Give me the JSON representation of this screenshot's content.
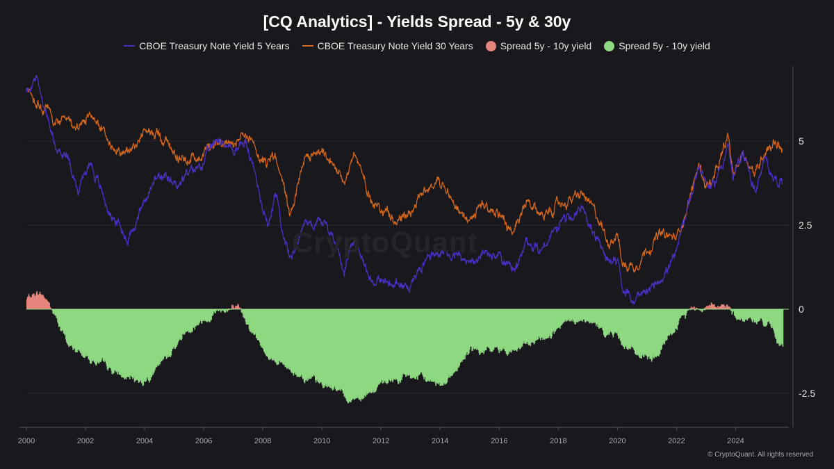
{
  "chart_data": {
    "type": "line",
    "title": "[CQ Analytics] - Yields Spread - 5y & 30y",
    "watermark": "CryptoQuant",
    "credit": "© CryptoQuant. All rights reserved",
    "x_ticks": [
      "2000",
      "2002",
      "2004",
      "2006",
      "2008",
      "2010",
      "2012",
      "2014",
      "2016",
      "2018",
      "2020",
      "2022",
      "2024"
    ],
    "y_ticks": [
      "5",
      "2.5",
      "0",
      "-2.5"
    ],
    "ylim": [
      -3.6,
      7.3
    ],
    "grid": true,
    "legend_position": "top-center",
    "colors": {
      "background": "#19181d",
      "yield_5y": "#4b2fc4",
      "yield_30y": "#d3661a",
      "spread_positive": "#e5857c",
      "spread_negative": "#8fd882"
    },
    "series": [
      {
        "name": "CBOE Treasury Note Yield 5 Years",
        "x": [
          "2000-01",
          "2000-05",
          "2001-01",
          "2001-06",
          "2001-10",
          "2002-03",
          "2002-10",
          "2003-06",
          "2004-01",
          "2004-06",
          "2005-01",
          "2005-07",
          "2006-01",
          "2006-07",
          "2007-01",
          "2007-06",
          "2007-12",
          "2008-03",
          "2008-06",
          "2008-12",
          "2009-06",
          "2010-01",
          "2010-06",
          "2010-10",
          "2011-02",
          "2011-09",
          "2012-06",
          "2012-12",
          "2013-06",
          "2013-12",
          "2014-06",
          "2015-01",
          "2015-06",
          "2016-01",
          "2016-07",
          "2016-12",
          "2017-06",
          "2018-01",
          "2018-11",
          "2019-06",
          "2019-09",
          "2020-01",
          "2020-03",
          "2020-08",
          "2021-01",
          "2021-06",
          "2022-01",
          "2022-06",
          "2022-10",
          "2023-01",
          "2023-04",
          "2023-10",
          "2023-12",
          "2024-04",
          "2024-09",
          "2025-01",
          "2025-05",
          "2025-08"
        ],
        "values": [
          6.5,
          6.8,
          4.8,
          4.5,
          3.6,
          4.4,
          3.0,
          2.1,
          3.2,
          3.9,
          3.7,
          4.0,
          4.4,
          5.1,
          4.7,
          5.0,
          3.4,
          2.5,
          3.4,
          1.5,
          2.6,
          2.6,
          2.1,
          1.2,
          2.2,
          0.9,
          0.7,
          0.7,
          1.4,
          1.7,
          1.7,
          1.3,
          1.6,
          1.6,
          1.0,
          1.9,
          1.8,
          2.5,
          3.0,
          1.8,
          1.4,
          1.6,
          0.5,
          0.3,
          0.4,
          0.9,
          1.6,
          3.2,
          4.3,
          3.8,
          3.6,
          4.9,
          3.8,
          4.7,
          3.5,
          4.4,
          3.9,
          3.8
        ]
      },
      {
        "name": "CBOE Treasury Note Yield 30 Years",
        "x": [
          "2000-01",
          "2000-05",
          "2001-01",
          "2001-06",
          "2001-10",
          "2002-03",
          "2002-10",
          "2003-06",
          "2004-01",
          "2004-06",
          "2005-01",
          "2005-07",
          "2006-01",
          "2006-07",
          "2007-01",
          "2007-06",
          "2007-12",
          "2008-03",
          "2008-06",
          "2008-12",
          "2009-06",
          "2010-01",
          "2010-06",
          "2010-10",
          "2011-02",
          "2011-09",
          "2012-06",
          "2012-12",
          "2013-06",
          "2013-12",
          "2014-06",
          "2015-01",
          "2015-06",
          "2016-01",
          "2016-07",
          "2016-12",
          "2017-06",
          "2018-01",
          "2018-11",
          "2019-06",
          "2019-09",
          "2020-01",
          "2020-03",
          "2020-08",
          "2021-01",
          "2021-06",
          "2022-01",
          "2022-06",
          "2022-10",
          "2023-01",
          "2023-04",
          "2023-10",
          "2023-12",
          "2024-04",
          "2024-09",
          "2025-01",
          "2025-05",
          "2025-08"
        ],
        "values": [
          6.5,
          6.2,
          5.6,
          5.7,
          5.3,
          5.8,
          5.0,
          4.6,
          5.2,
          5.3,
          4.7,
          4.4,
          4.7,
          5.1,
          4.9,
          5.1,
          4.5,
          4.4,
          4.6,
          2.8,
          4.4,
          4.6,
          4.2,
          3.9,
          4.6,
          3.3,
          2.7,
          2.9,
          3.4,
          3.9,
          3.4,
          2.5,
          3.1,
          2.9,
          2.2,
          3.1,
          2.8,
          3.1,
          3.4,
          2.6,
          2.0,
          2.3,
          1.3,
          1.3,
          1.8,
          2.2,
          2.1,
          3.2,
          4.3,
          3.7,
          3.8,
          5.1,
          4.0,
          4.7,
          4.0,
          4.8,
          5.0,
          4.8
        ]
      },
      {
        "name": "Spread 5y - 10y yield",
        "x": [
          "2000-01",
          "2000-06",
          "2000-09",
          "2001-01",
          "2001-06",
          "2002-01",
          "2002-06",
          "2003-06",
          "2004-01",
          "2004-06",
          "2005-01",
          "2005-06",
          "2006-01",
          "2006-07",
          "2007-01",
          "2007-06",
          "2008-01",
          "2008-06",
          "2008-12",
          "2009-06",
          "2010-01",
          "2010-06",
          "2010-12",
          "2011-06",
          "2012-01",
          "2012-06",
          "2013-01",
          "2013-06",
          "2014-01",
          "2014-06",
          "2015-01",
          "2015-06",
          "2016-01",
          "2016-07",
          "2017-01",
          "2017-06",
          "2018-01",
          "2018-06",
          "2018-12",
          "2019-06",
          "2020-01",
          "2020-06",
          "2021-01",
          "2021-06",
          "2022-01",
          "2022-06",
          "2022-10",
          "2023-01",
          "2023-06",
          "2023-10",
          "2024-01",
          "2024-06",
          "2025-01",
          "2025-05",
          "2025-08"
        ],
        "values": [
          0.3,
          0.5,
          0.3,
          -0.3,
          -1.1,
          -1.4,
          -1.6,
          -2.1,
          -2.1,
          -1.8,
          -1.1,
          -0.6,
          -0.3,
          0.0,
          0.0,
          -0.3,
          -1.2,
          -1.5,
          -1.8,
          -2.0,
          -2.3,
          -2.3,
          -2.7,
          -2.5,
          -2.3,
          -2.1,
          -2.0,
          -2.1,
          -2.2,
          -1.9,
          -1.2,
          -1.3,
          -1.2,
          -1.2,
          -1.1,
          -0.9,
          -0.6,
          -0.4,
          -0.4,
          -0.6,
          -0.8,
          -1.2,
          -1.5,
          -1.3,
          -0.5,
          0.0,
          0.1,
          0.1,
          0.2,
          0.0,
          -0.2,
          -0.3,
          -0.4,
          -0.8,
          -1.2
        ]
      }
    ],
    "legend": [
      {
        "label": "CBOE Treasury Note Yield 5 Years",
        "kind": "line",
        "color": "#4b2fc4"
      },
      {
        "label": "CBOE Treasury Note Yield 30 Years",
        "kind": "line",
        "color": "#d3661a"
      },
      {
        "label": "Spread 5y - 10y yield",
        "kind": "dot",
        "color": "#e5857c"
      },
      {
        "label": "Spread 5y - 10y yield",
        "kind": "dot",
        "color": "#8fd882"
      }
    ]
  }
}
